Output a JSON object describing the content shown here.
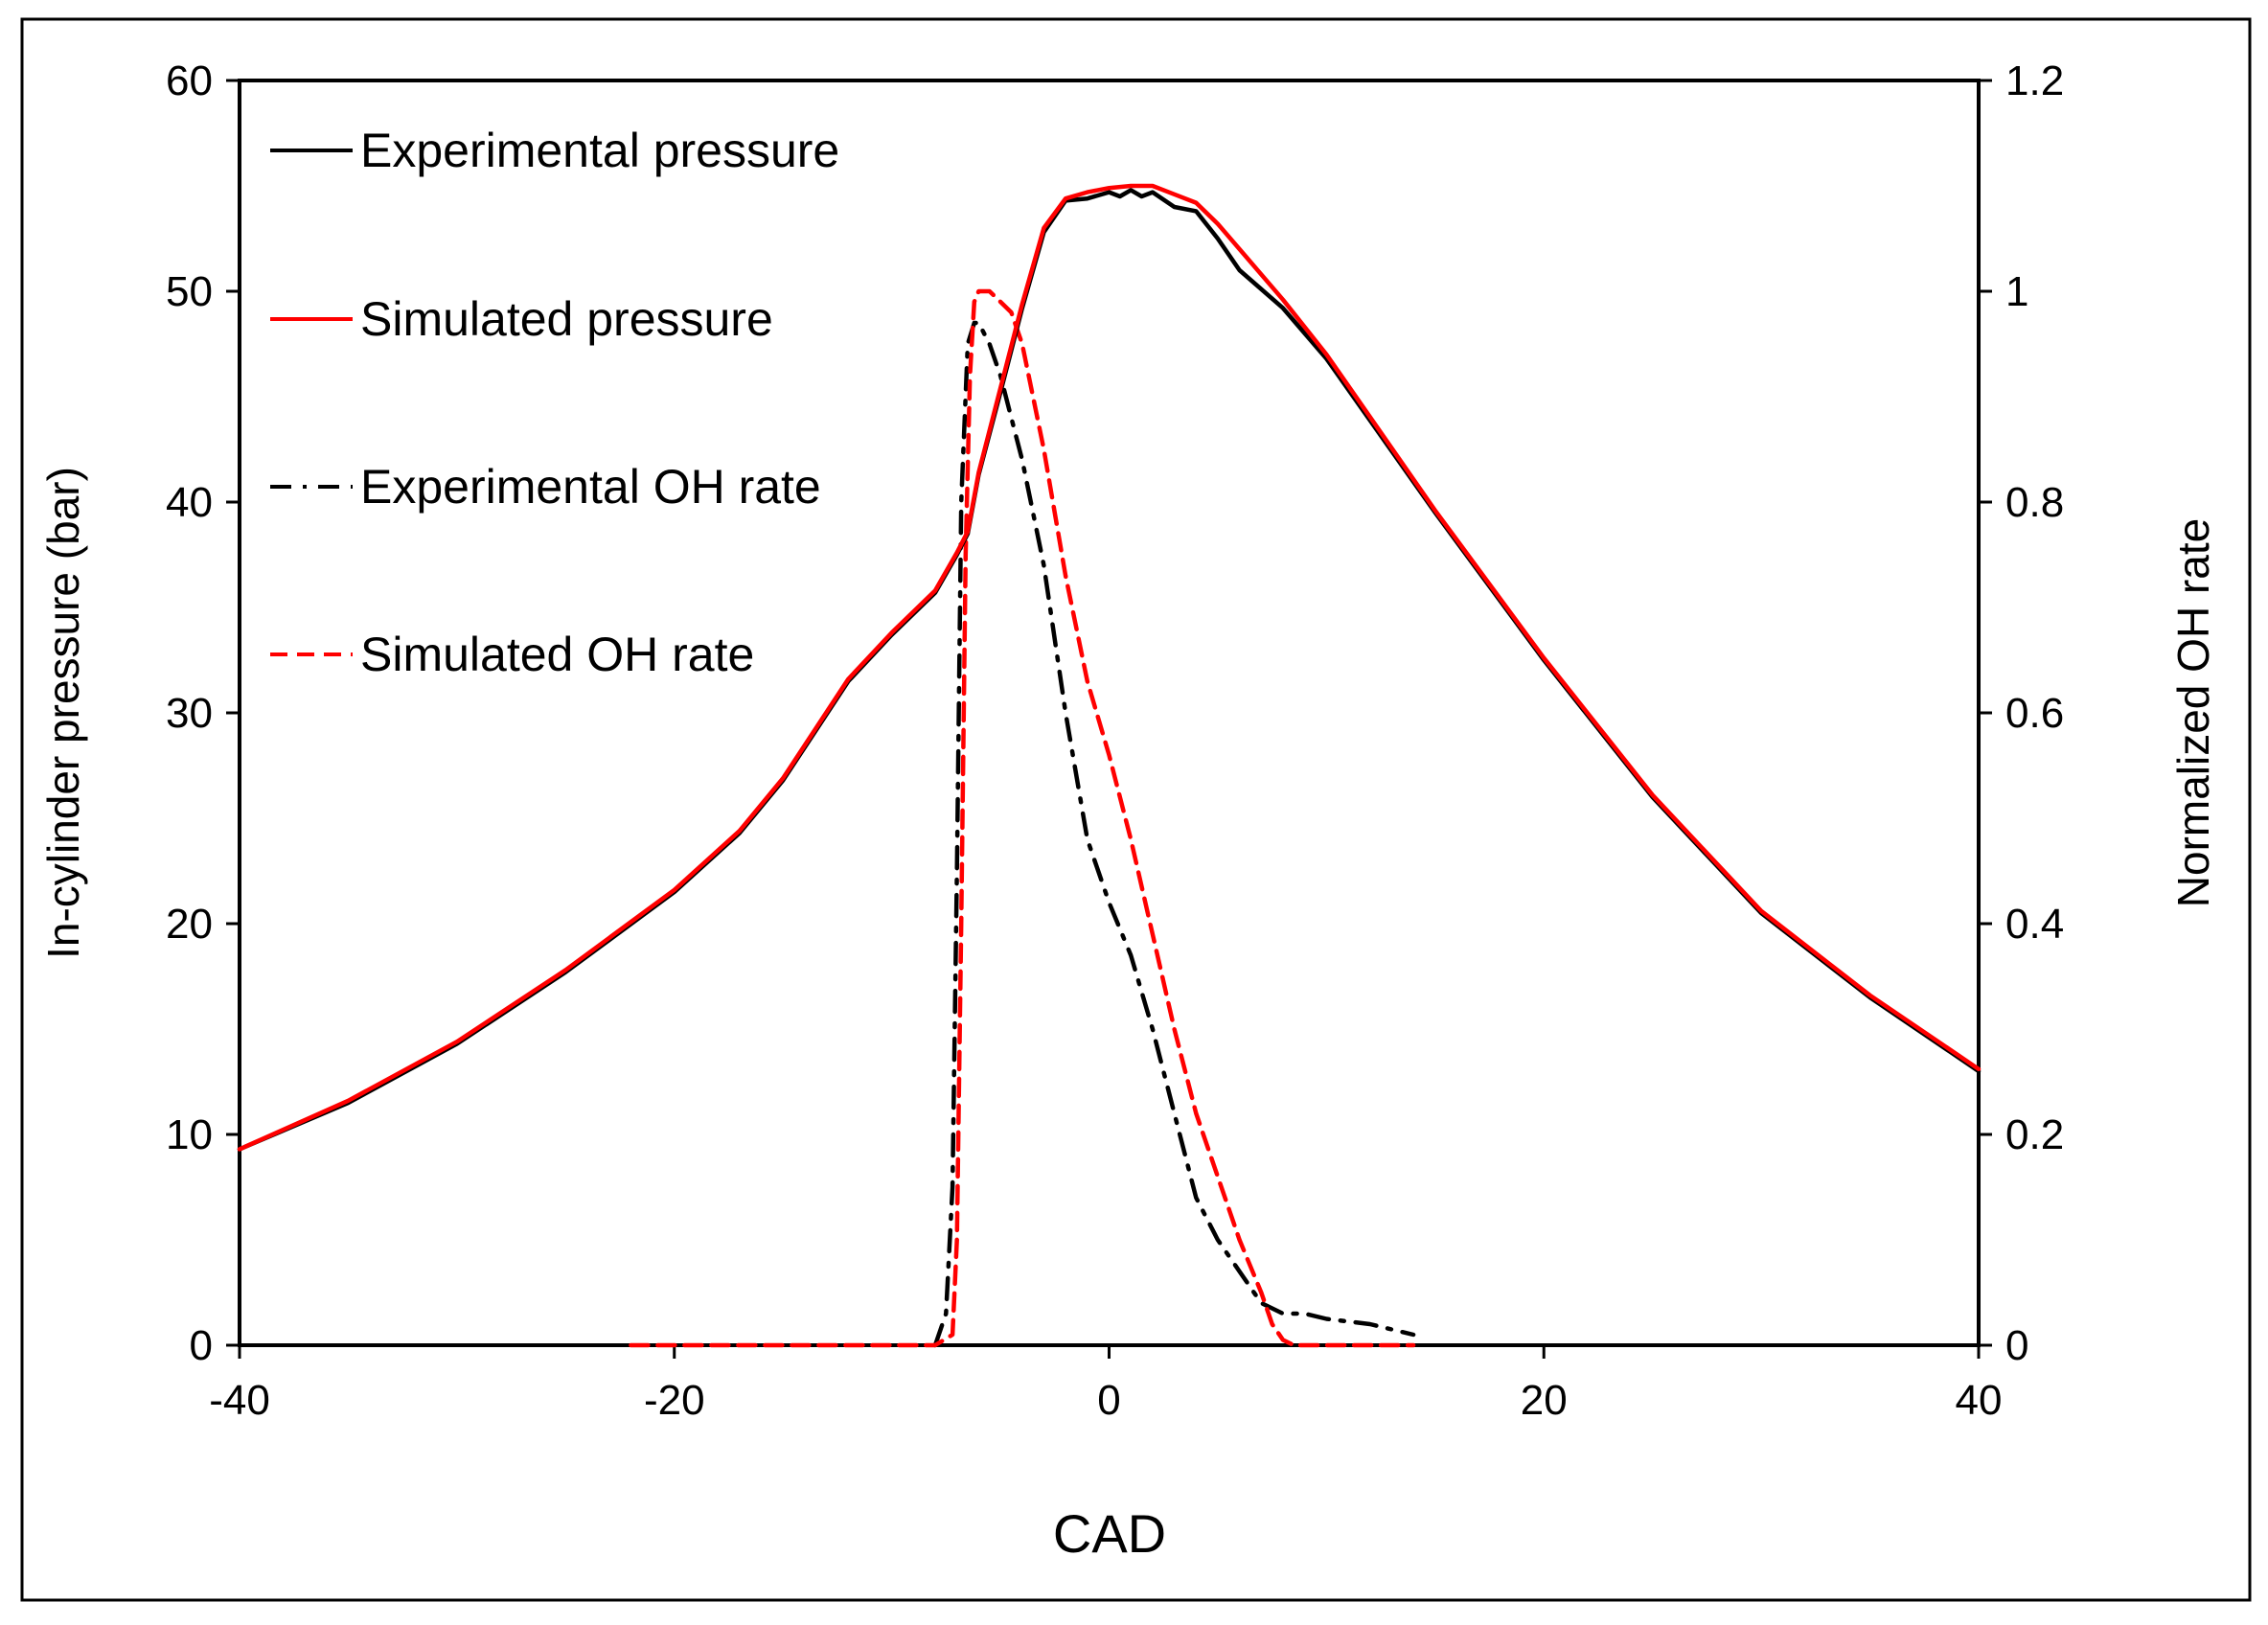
{
  "chart_data": {
    "type": "line",
    "title": "",
    "xlabel": "CAD",
    "ylabel": "In-cylinder pressure (bar)",
    "y2label": "Normalized OH rate",
    "xlim": [
      -40,
      40
    ],
    "ylim": [
      0,
      60
    ],
    "y2lim": [
      0,
      1.2
    ],
    "x_ticks": [
      "-40",
      "-20",
      "0",
      "20",
      "40"
    ],
    "y_ticks": [
      "0",
      "10",
      "20",
      "30",
      "40",
      "50",
      "60"
    ],
    "y2_ticks": [
      "0",
      "0.2",
      "0.4",
      "0.6",
      "0.8",
      "1",
      "1.2"
    ],
    "grid": false,
    "legend_position": "top-left inside",
    "legend": [
      {
        "label": "Experimental pressure",
        "color": "#000000",
        "dash": "solid"
      },
      {
        "label": "Simulated pressure",
        "color": "#ff0000",
        "dash": "solid"
      },
      {
        "label": "Experimental OH rate",
        "color": "#000000",
        "dash": "dash-dot"
      },
      {
        "label": "Simulated OH rate",
        "color": "#ff0000",
        "dash": "dashed"
      }
    ],
    "series": [
      {
        "name": "Experimental pressure",
        "axis": "left",
        "color": "#000000",
        "dash": "solid",
        "x": [
          -40,
          -35,
          -30,
          -25,
          -20,
          -17,
          -15,
          -12,
          -10,
          -8,
          -7,
          -6.5,
          -6,
          -5,
          -4,
          -3,
          -2,
          -1,
          0,
          0.5,
          1,
          1.5,
          2,
          3,
          4,
          5,
          6,
          8,
          10,
          15,
          20,
          25,
          30,
          35,
          40
        ],
        "y": [
          9.3,
          11.5,
          14.3,
          17.7,
          21.5,
          24.3,
          26.8,
          31.5,
          33.7,
          35.7,
          37.5,
          38.5,
          41.3,
          45.2,
          49.2,
          52.8,
          54.3,
          54.4,
          54.7,
          54.5,
          54.8,
          54.5,
          54.7,
          54.0,
          53.8,
          52.5,
          51.0,
          49.2,
          46.8,
          39.5,
          32.5,
          26.0,
          20.5,
          16.5,
          13.0
        ]
      },
      {
        "name": "Simulated pressure",
        "axis": "left",
        "color": "#ff0000",
        "dash": "solid",
        "x": [
          -40,
          -35,
          -30,
          -25,
          -20,
          -17,
          -15,
          -12,
          -10,
          -8,
          -7,
          -6.5,
          -6,
          -5,
          -4,
          -3,
          -2,
          -1,
          0,
          1,
          2,
          3,
          4,
          5,
          6,
          8,
          10,
          15,
          20,
          25,
          30,
          35,
          40
        ],
        "y": [
          9.3,
          11.6,
          14.4,
          17.8,
          21.6,
          24.4,
          26.9,
          31.6,
          33.8,
          35.8,
          37.6,
          38.6,
          41.4,
          45.4,
          49.4,
          53.0,
          54.4,
          54.7,
          54.9,
          55.0,
          55.0,
          54.6,
          54.2,
          53.2,
          52.0,
          49.6,
          47.0,
          39.6,
          32.6,
          26.1,
          20.6,
          16.6,
          13.1
        ]
      },
      {
        "name": "Experimental OH rate",
        "axis": "right",
        "color": "#000000",
        "dash": "dash-dot",
        "x": [
          -8,
          -7.5,
          -7.2,
          -7,
          -6.8,
          -6.5,
          -6.2,
          -6,
          -5.5,
          -5,
          -4,
          -3,
          -2,
          -1,
          0,
          1,
          2,
          3,
          4,
          5,
          6,
          7,
          8,
          9,
          10,
          12,
          14
        ],
        "y": [
          0,
          0.03,
          0.15,
          0.45,
          0.8,
          0.95,
          0.97,
          0.97,
          0.95,
          0.92,
          0.84,
          0.74,
          0.6,
          0.48,
          0.42,
          0.37,
          0.3,
          0.22,
          0.14,
          0.1,
          0.07,
          0.04,
          0.03,
          0.03,
          0.025,
          0.02,
          0.01
        ]
      },
      {
        "name": "Simulated OH rate",
        "axis": "right",
        "color": "#ff0000",
        "dash": "dashed",
        "x": [
          -22,
          -10,
          -8,
          -7.2,
          -7,
          -6.8,
          -6.6,
          -6.4,
          -6.2,
          -6,
          -5.5,
          -5,
          -4.5,
          -4,
          -3,
          -2,
          -1,
          0,
          1,
          2,
          3,
          4,
          5,
          6,
          7,
          7.5,
          8,
          8.5,
          10,
          14
        ],
        "y": [
          0,
          0,
          0,
          0.01,
          0.1,
          0.4,
          0.75,
          0.92,
          0.99,
          1.0,
          1.0,
          0.99,
          0.98,
          0.95,
          0.85,
          0.73,
          0.63,
          0.56,
          0.48,
          0.39,
          0.3,
          0.22,
          0.16,
          0.1,
          0.05,
          0.02,
          0.005,
          0,
          0,
          0
        ]
      }
    ]
  }
}
